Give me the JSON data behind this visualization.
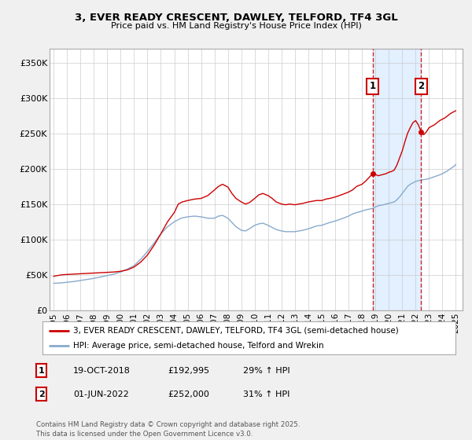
{
  "title": "3, EVER READY CRESCENT, DAWLEY, TELFORD, TF4 3GL",
  "subtitle": "Price paid vs. HM Land Registry's House Price Index (HPI)",
  "ylabel_ticks": [
    "£0",
    "£50K",
    "£100K",
    "£150K",
    "£200K",
    "£250K",
    "£300K",
    "£350K"
  ],
  "ytick_values": [
    0,
    50000,
    100000,
    150000,
    200000,
    250000,
    300000,
    350000
  ],
  "ylim": [
    0,
    370000
  ],
  "xlim_start": 1994.7,
  "xlim_end": 2025.5,
  "xticks": [
    1995,
    1996,
    1997,
    1998,
    1999,
    2000,
    2001,
    2002,
    2003,
    2004,
    2005,
    2006,
    2007,
    2008,
    2009,
    2010,
    2011,
    2012,
    2013,
    2014,
    2015,
    2016,
    2017,
    2018,
    2019,
    2020,
    2021,
    2022,
    2023,
    2024,
    2025
  ],
  "line1_color": "#cc0000",
  "line2_color": "#88aacc",
  "vline1_x": 2018.8,
  "vline2_x": 2022.42,
  "vline_color": "#cc0000",
  "shade_color": "#ddeeff",
  "point1_x": 2018.8,
  "point1_y": 192995,
  "point2_x": 2022.42,
  "point2_y": 252000,
  "legend_line1": "3, EVER READY CRESCENT, DAWLEY, TELFORD, TF4 3GL (semi-detached house)",
  "legend_line2": "HPI: Average price, semi-detached house, Telford and Wrekin",
  "table_row1": [
    "1",
    "19-OCT-2018",
    "£192,995",
    "29% ↑ HPI"
  ],
  "table_row2": [
    "2",
    "01-JUN-2022",
    "£252,000",
    "31% ↑ HPI"
  ],
  "footnote": "Contains HM Land Registry data © Crown copyright and database right 2025.\nThis data is licensed under the Open Government Licence v3.0.",
  "bg_color": "#f0f0f0",
  "plot_bg_color": "#ffffff",
  "grid_color": "#cccccc",
  "red_anchors": [
    [
      1995.0,
      48000
    ],
    [
      1995.3,
      49000
    ],
    [
      1995.6,
      50000
    ],
    [
      1996.0,
      50500
    ],
    [
      1996.5,
      51000
    ],
    [
      1997.0,
      51500
    ],
    [
      1997.5,
      52000
    ],
    [
      1998.0,
      52500
    ],
    [
      1998.5,
      53000
    ],
    [
      1999.0,
      53500
    ],
    [
      1999.5,
      54000
    ],
    [
      2000.0,
      55000
    ],
    [
      2000.5,
      57000
    ],
    [
      2001.0,
      61000
    ],
    [
      2001.5,
      68000
    ],
    [
      2002.0,
      78000
    ],
    [
      2002.5,
      92000
    ],
    [
      2003.0,
      108000
    ],
    [
      2003.5,
      125000
    ],
    [
      2004.0,
      138000
    ],
    [
      2004.3,
      150000
    ],
    [
      2004.6,
      153000
    ],
    [
      2005.0,
      155000
    ],
    [
      2005.5,
      157000
    ],
    [
      2006.0,
      158000
    ],
    [
      2006.5,
      162000
    ],
    [
      2007.0,
      170000
    ],
    [
      2007.3,
      175000
    ],
    [
      2007.6,
      178000
    ],
    [
      2008.0,
      174000
    ],
    [
      2008.3,
      165000
    ],
    [
      2008.6,
      158000
    ],
    [
      2009.0,
      153000
    ],
    [
      2009.3,
      150000
    ],
    [
      2009.6,
      152000
    ],
    [
      2010.0,
      158000
    ],
    [
      2010.3,
      163000
    ],
    [
      2010.6,
      165000
    ],
    [
      2011.0,
      162000
    ],
    [
      2011.3,
      158000
    ],
    [
      2011.6,
      153000
    ],
    [
      2012.0,
      150000
    ],
    [
      2012.3,
      149000
    ],
    [
      2012.6,
      150000
    ],
    [
      2013.0,
      149000
    ],
    [
      2013.3,
      150000
    ],
    [
      2013.6,
      151000
    ],
    [
      2014.0,
      153000
    ],
    [
      2014.3,
      154000
    ],
    [
      2014.6,
      155000
    ],
    [
      2015.0,
      155000
    ],
    [
      2015.3,
      157000
    ],
    [
      2015.6,
      158000
    ],
    [
      2016.0,
      160000
    ],
    [
      2016.3,
      162000
    ],
    [
      2016.6,
      164000
    ],
    [
      2017.0,
      167000
    ],
    [
      2017.3,
      170000
    ],
    [
      2017.6,
      175000
    ],
    [
      2018.0,
      178000
    ],
    [
      2018.3,
      183000
    ],
    [
      2018.6,
      189000
    ],
    [
      2018.8,
      192995
    ],
    [
      2019.0,
      192000
    ],
    [
      2019.2,
      190000
    ],
    [
      2019.4,
      191000
    ],
    [
      2019.6,
      192000
    ],
    [
      2019.8,
      193000
    ],
    [
      2020.0,
      195000
    ],
    [
      2020.2,
      196000
    ],
    [
      2020.4,
      198000
    ],
    [
      2020.6,
      205000
    ],
    [
      2020.8,
      215000
    ],
    [
      2021.0,
      225000
    ],
    [
      2021.2,
      238000
    ],
    [
      2021.4,
      250000
    ],
    [
      2021.6,
      258000
    ],
    [
      2021.8,
      265000
    ],
    [
      2022.0,
      268000
    ],
    [
      2022.2,
      262000
    ],
    [
      2022.42,
      252000
    ],
    [
      2022.6,
      248000
    ],
    [
      2022.8,
      252000
    ],
    [
      2023.0,
      258000
    ],
    [
      2023.2,
      260000
    ],
    [
      2023.4,
      262000
    ],
    [
      2023.6,
      265000
    ],
    [
      2023.8,
      268000
    ],
    [
      2024.0,
      270000
    ],
    [
      2024.2,
      272000
    ],
    [
      2024.4,
      275000
    ],
    [
      2024.6,
      278000
    ],
    [
      2024.8,
      280000
    ],
    [
      2025.0,
      282000
    ]
  ],
  "blue_anchors": [
    [
      1995.0,
      38000
    ],
    [
      1995.5,
      38500
    ],
    [
      1996.0,
      39500
    ],
    [
      1996.5,
      40500
    ],
    [
      1997.0,
      42000
    ],
    [
      1997.5,
      43500
    ],
    [
      1998.0,
      45000
    ],
    [
      1998.5,
      47000
    ],
    [
      1999.0,
      49000
    ],
    [
      1999.5,
      51000
    ],
    [
      2000.0,
      54000
    ],
    [
      2000.5,
      58000
    ],
    [
      2001.0,
      63000
    ],
    [
      2001.5,
      72000
    ],
    [
      2002.0,
      83000
    ],
    [
      2002.5,
      95000
    ],
    [
      2003.0,
      108000
    ],
    [
      2003.5,
      118000
    ],
    [
      2004.0,
      125000
    ],
    [
      2004.5,
      130000
    ],
    [
      2005.0,
      132000
    ],
    [
      2005.5,
      133000
    ],
    [
      2006.0,
      132000
    ],
    [
      2006.5,
      130000
    ],
    [
      2007.0,
      130000
    ],
    [
      2007.3,
      133000
    ],
    [
      2007.6,
      134000
    ],
    [
      2008.0,
      130000
    ],
    [
      2008.3,
      124000
    ],
    [
      2008.6,
      118000
    ],
    [
      2009.0,
      113000
    ],
    [
      2009.3,
      112000
    ],
    [
      2009.6,
      115000
    ],
    [
      2010.0,
      120000
    ],
    [
      2010.3,
      122000
    ],
    [
      2010.6,
      123000
    ],
    [
      2011.0,
      120000
    ],
    [
      2011.3,
      117000
    ],
    [
      2011.6,
      114000
    ],
    [
      2012.0,
      112000
    ],
    [
      2012.3,
      111000
    ],
    [
      2012.6,
      111000
    ],
    [
      2013.0,
      111000
    ],
    [
      2013.3,
      112000
    ],
    [
      2013.6,
      113000
    ],
    [
      2014.0,
      115000
    ],
    [
      2014.3,
      117000
    ],
    [
      2014.6,
      119000
    ],
    [
      2015.0,
      120000
    ],
    [
      2015.3,
      122000
    ],
    [
      2015.6,
      124000
    ],
    [
      2016.0,
      126000
    ],
    [
      2016.3,
      128000
    ],
    [
      2016.6,
      130000
    ],
    [
      2017.0,
      133000
    ],
    [
      2017.3,
      136000
    ],
    [
      2017.6,
      138000
    ],
    [
      2018.0,
      140000
    ],
    [
      2018.3,
      142000
    ],
    [
      2018.6,
      143000
    ],
    [
      2018.8,
      144000
    ],
    [
      2019.0,
      146000
    ],
    [
      2019.3,
      148000
    ],
    [
      2019.6,
      149000
    ],
    [
      2019.8,
      150000
    ],
    [
      2020.0,
      151000
    ],
    [
      2020.2,
      152000
    ],
    [
      2020.4,
      153000
    ],
    [
      2020.6,
      156000
    ],
    [
      2020.8,
      160000
    ],
    [
      2021.0,
      165000
    ],
    [
      2021.2,
      170000
    ],
    [
      2021.4,
      175000
    ],
    [
      2021.6,
      178000
    ],
    [
      2021.8,
      180000
    ],
    [
      2022.0,
      182000
    ],
    [
      2022.2,
      183000
    ],
    [
      2022.42,
      184000
    ],
    [
      2022.6,
      184500
    ],
    [
      2022.8,
      185000
    ],
    [
      2023.0,
      186000
    ],
    [
      2023.3,
      188000
    ],
    [
      2023.6,
      190000
    ],
    [
      2023.9,
      192000
    ],
    [
      2024.0,
      193000
    ],
    [
      2024.3,
      196000
    ],
    [
      2024.6,
      200000
    ],
    [
      2024.9,
      204000
    ],
    [
      2025.0,
      206000
    ]
  ]
}
